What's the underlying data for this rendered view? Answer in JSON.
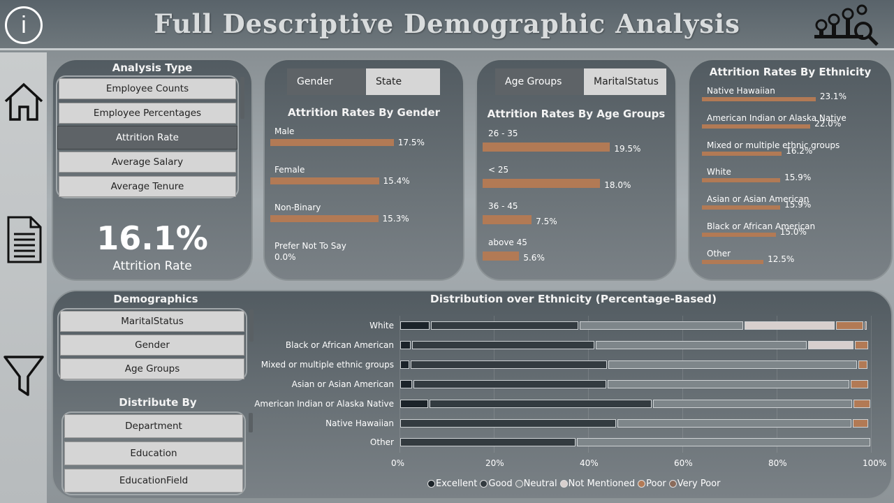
{
  "header": {
    "title": "Full Descriptive Demographic Analysis",
    "info_label": "i"
  },
  "sidebar": {
    "items": [
      {
        "name": "home-icon"
      },
      {
        "name": "report-icon"
      },
      {
        "name": "filter-icon"
      }
    ]
  },
  "analysis_type": {
    "title": "Analysis Type",
    "options": [
      "Employee Counts",
      "Employee Percentages",
      "Attrition Rate",
      "Average Salary",
      "Average Tenure"
    ],
    "selected": "Attrition Rate"
  },
  "kpi": {
    "value": "16.1%",
    "label": "Attrition Rate"
  },
  "gender_card": {
    "tabs": [
      "Gender",
      "State"
    ],
    "title": "Attrition Rates By Gender",
    "items": [
      {
        "label": "Male",
        "value": 17.5,
        "display": "17.5%"
      },
      {
        "label": "Female",
        "value": 15.4,
        "display": "15.4%"
      },
      {
        "label": "Non-Binary",
        "value": 15.3,
        "display": "15.3%"
      },
      {
        "label": "Prefer Not To Say",
        "value": 0.0,
        "display": "0.0%"
      }
    ]
  },
  "age_card": {
    "tabs": [
      "Age Groups",
      "MaritalStatus"
    ],
    "title": "Attrition Rates By Age Groups",
    "items": [
      {
        "label": "26 - 35",
        "value": 19.5,
        "display": "19.5%"
      },
      {
        "label": "< 25",
        "value": 18.0,
        "display": "18.0%"
      },
      {
        "label": "36 - 45",
        "value": 7.5,
        "display": "7.5%"
      },
      {
        "label": "above 45",
        "value": 5.6,
        "display": "5.6%"
      }
    ]
  },
  "ethnicity_card": {
    "title": "Attrition Rates By Ethnicity",
    "items": [
      {
        "label": "Native Hawaiian",
        "value": 23.1,
        "display": "23.1%"
      },
      {
        "label": "American Indian or Alaska Native",
        "value": 22.0,
        "display": "22.0%"
      },
      {
        "label": "Mixed or multiple ethnic groups",
        "value": 16.2,
        "display": "16.2%"
      },
      {
        "label": "White",
        "value": 15.9,
        "display": "15.9%"
      },
      {
        "label": "Asian or Asian American",
        "value": 15.9,
        "display": "15.9%"
      },
      {
        "label": "Black or African American",
        "value": 15.0,
        "display": "15.0%"
      },
      {
        "label": "Other",
        "value": 12.5,
        "display": "12.5%"
      }
    ]
  },
  "demographics": {
    "title": "Demographics",
    "options": [
      "MaritalStatus",
      "Gender",
      "Age Groups"
    ]
  },
  "distribute_by": {
    "title": "Distribute By",
    "options": [
      "Department",
      "Education",
      "EducationField"
    ]
  },
  "chart_data": {
    "type": "bar",
    "stacked": true,
    "orientation": "horizontal",
    "title": "Distribution over Ethnicity (Percentage-Based)",
    "categories": [
      "White",
      "Black or African American",
      "Mixed or multiple ethnic groups",
      "Asian or Asian American",
      "American Indian or Alaska Native",
      "Native Hawaiian",
      "Other"
    ],
    "xlim": [
      0,
      100
    ],
    "xticks": [
      "0%",
      "20%",
      "40%",
      "60%",
      "80%",
      "100%"
    ],
    "legend_position": "bottom",
    "series": [
      {
        "name": "Excellent",
        "color": "#1b2329",
        "values": [
          6.5,
          2.5,
          2.2,
          2.8,
          6.2,
          0,
          0
        ]
      },
      {
        "name": "Good",
        "color": "#333b40",
        "values": [
          31.5,
          39.0,
          42.0,
          41.2,
          47.5,
          46.0,
          37.5
        ]
      },
      {
        "name": "Neutral",
        "color": "#7e868a",
        "values": [
          35.0,
          45.0,
          53.0,
          51.5,
          42.5,
          50.0,
          62.5
        ]
      },
      {
        "name": "Not Mentioned",
        "color": "#d7cfcd",
        "values": [
          19.5,
          10.0,
          0,
          0,
          0,
          0,
          0
        ]
      },
      {
        "name": "Poor",
        "color": "#b27a55",
        "values": [
          6.0,
          3.0,
          2.2,
          4.0,
          3.8,
          3.5,
          0
        ]
      },
      {
        "name": "Very Poor",
        "color": "#8a6b5a",
        "values": [
          0.8,
          0,
          0,
          0,
          0,
          0,
          0
        ]
      }
    ]
  }
}
